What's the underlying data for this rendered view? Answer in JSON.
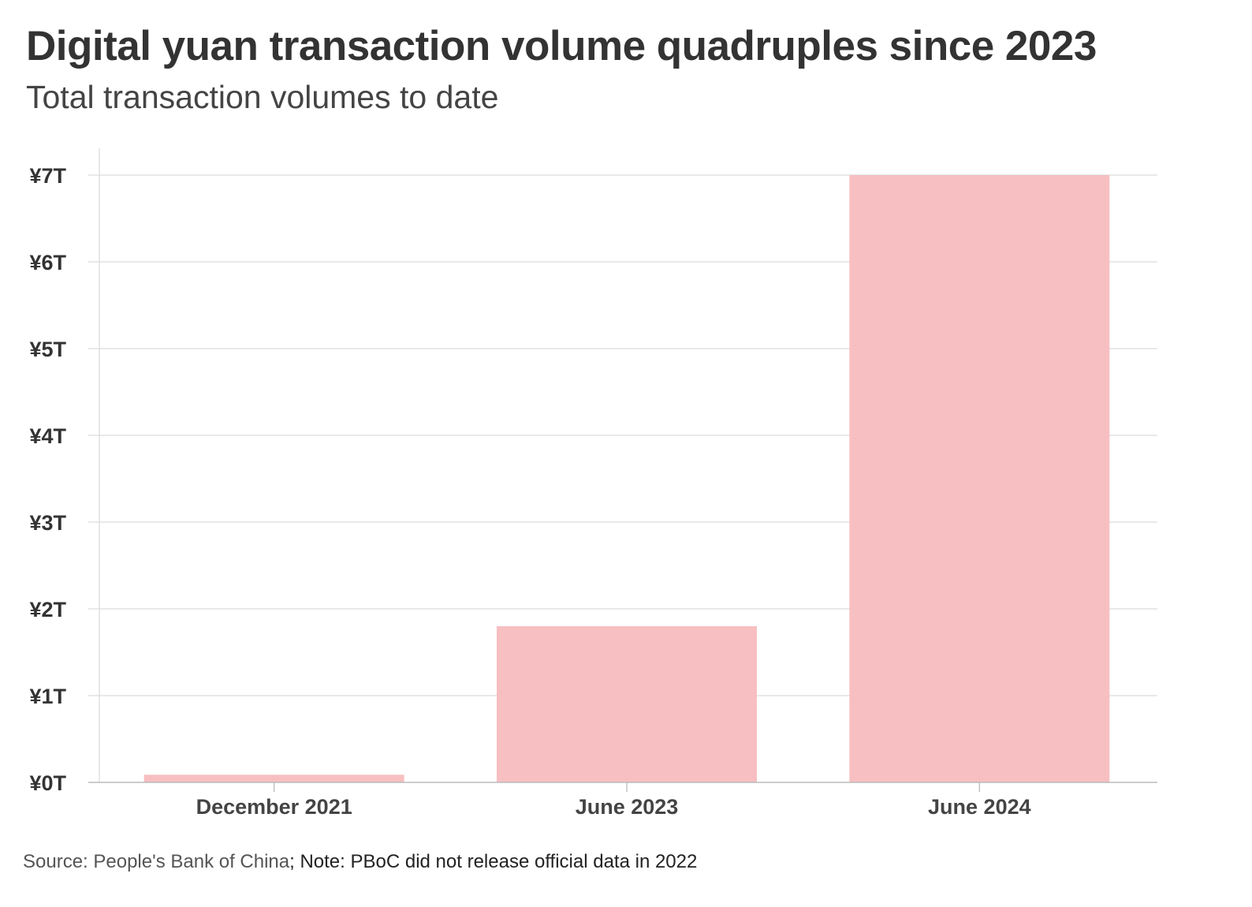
{
  "chart_data": {
    "type": "bar",
    "title": "Digital yuan transaction volume quadruples since 2023",
    "subtitle": "Total transaction volumes to date",
    "categories": [
      "December 2021",
      "June 2023",
      "June 2024"
    ],
    "values": [
      0.088,
      1.8,
      7.0
    ],
    "unit": "trillion yuan",
    "xlabel": "",
    "ylabel": "",
    "ylim": [
      0,
      7
    ],
    "yticks": [
      0,
      1,
      2,
      3,
      4,
      5,
      6,
      7
    ],
    "ytick_labels": [
      "¥0T",
      "¥1T",
      "¥2T",
      "¥3T",
      "¥4T",
      "¥5T",
      "¥6T",
      "¥7T"
    ],
    "grid": true,
    "bar_color": "#f7bfc1",
    "source": "Source: People's Bank of China",
    "note": "; Note: PBoC did not release official data in 2022"
  }
}
